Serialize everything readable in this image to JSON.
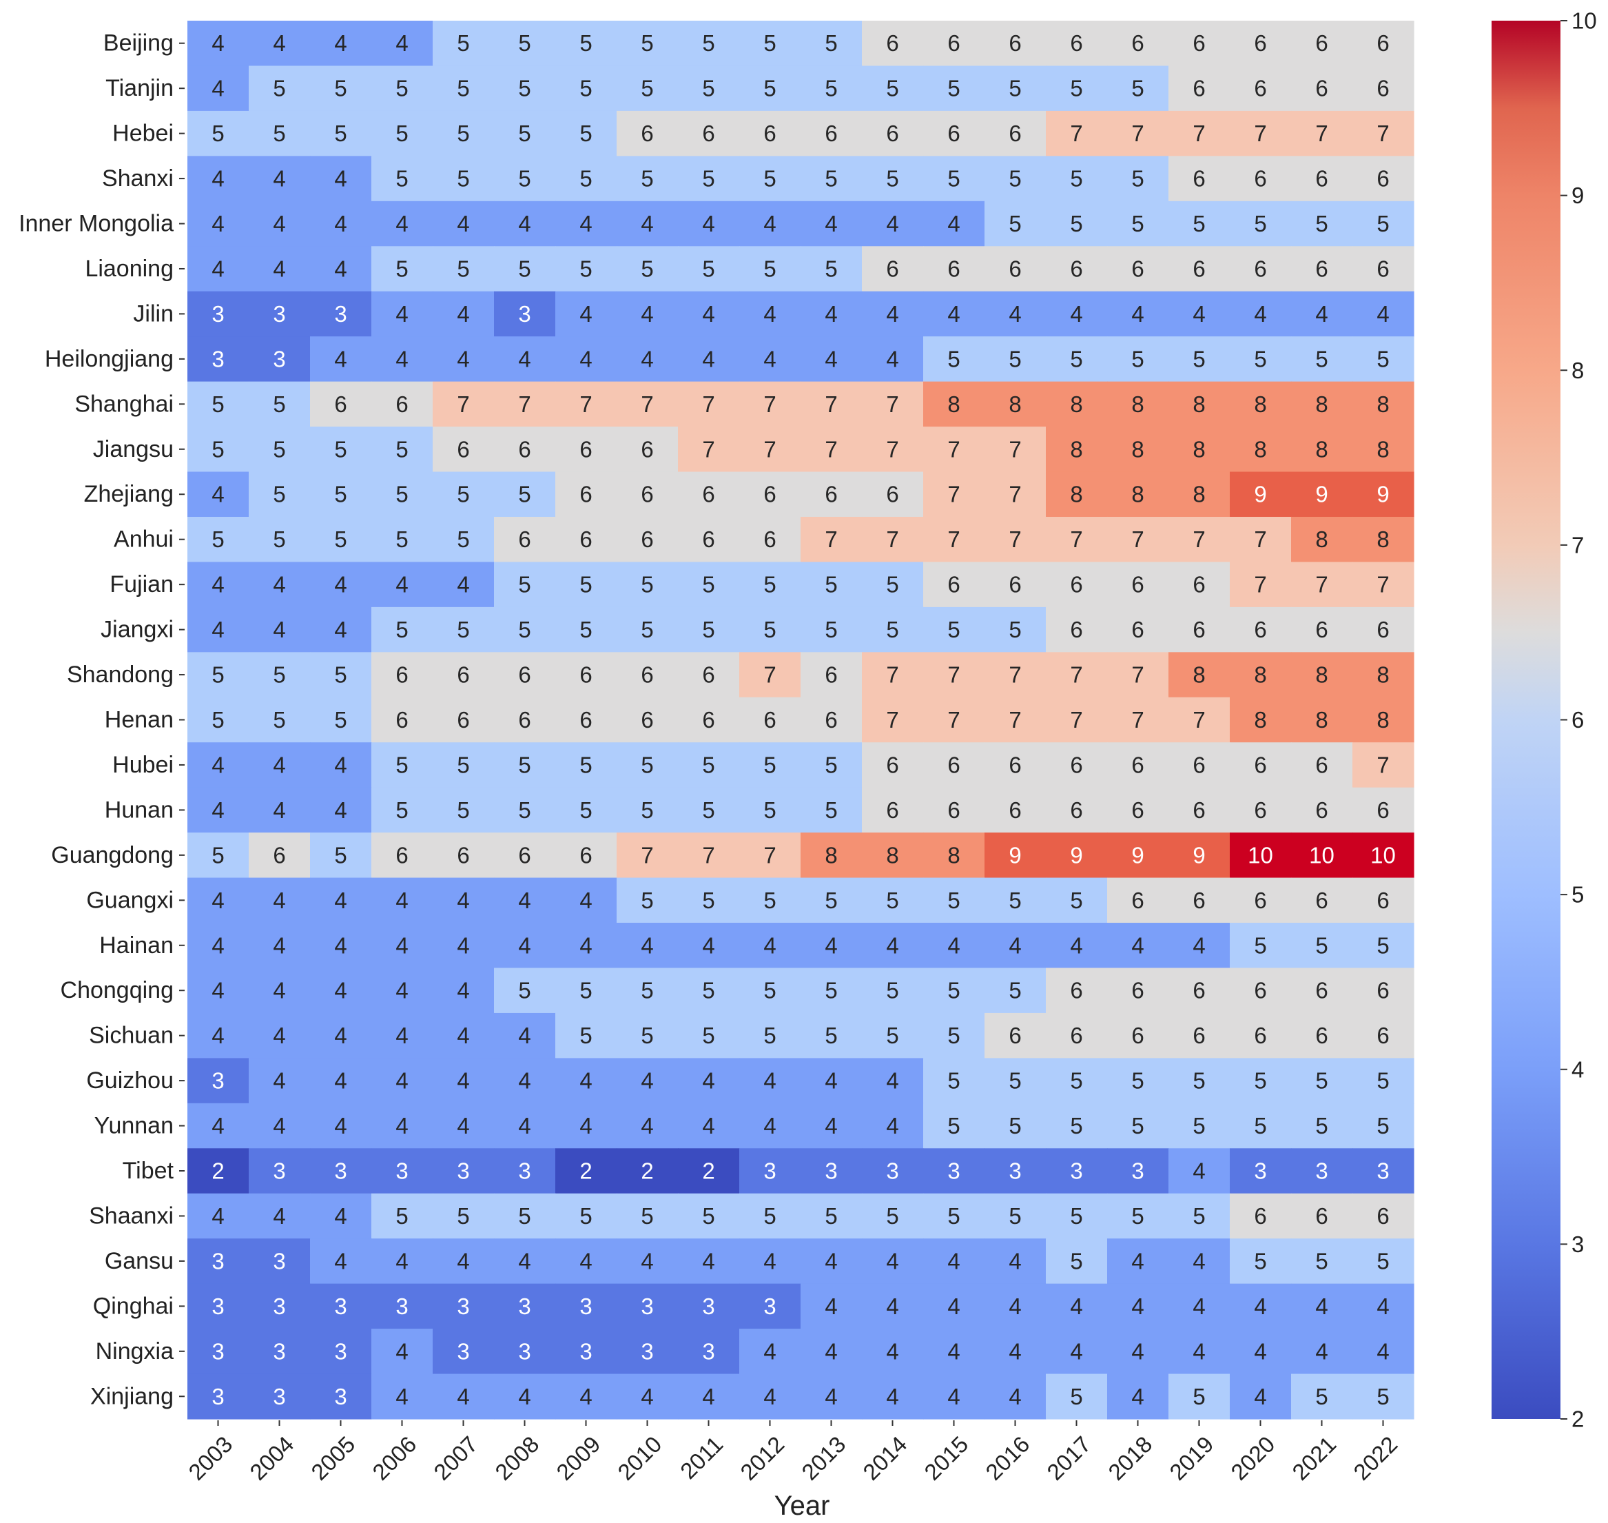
{
  "chart_data": {
    "type": "heatmap",
    "title": "",
    "xlabel": "Year",
    "ylabel": "",
    "x": [
      "2003",
      "2004",
      "2005",
      "2006",
      "2007",
      "2008",
      "2009",
      "2010",
      "2011",
      "2012",
      "2013",
      "2014",
      "2015",
      "2016",
      "2017",
      "2018",
      "2019",
      "2020",
      "2021",
      "2022"
    ],
    "y": [
      "Beijing",
      "Tianjin",
      "Hebei",
      "Shanxi",
      "Inner Mongolia",
      "Liaoning",
      "Jilin",
      "Heilongjiang",
      "Shanghai",
      "Jiangsu",
      "Zhejiang",
      "Anhui",
      "Fujian",
      "Jiangxi",
      "Shandong",
      "Henan",
      "Hubei",
      "Hunan",
      "Guangdong",
      "Guangxi",
      "Hainan",
      "Chongqing",
      "Sichuan",
      "Guizhou",
      "Yunnan",
      "Tibet",
      "Shaanxi",
      "Gansu",
      "Qinghai",
      "Ningxia",
      "Xinjiang"
    ],
    "values": [
      [
        4,
        4,
        4,
        4,
        5,
        5,
        5,
        5,
        5,
        5,
        5,
        6,
        6,
        6,
        6,
        6,
        6,
        6,
        6,
        6
      ],
      [
        4,
        5,
        5,
        5,
        5,
        5,
        5,
        5,
        5,
        5,
        5,
        5,
        5,
        5,
        5,
        5,
        6,
        6,
        6,
        6
      ],
      [
        5,
        5,
        5,
        5,
        5,
        5,
        5,
        6,
        6,
        6,
        6,
        6,
        6,
        6,
        7,
        7,
        7,
        7,
        7,
        7
      ],
      [
        4,
        4,
        4,
        5,
        5,
        5,
        5,
        5,
        5,
        5,
        5,
        5,
        5,
        5,
        5,
        5,
        6,
        6,
        6,
        6
      ],
      [
        4,
        4,
        4,
        4,
        4,
        4,
        4,
        4,
        4,
        4,
        4,
        4,
        4,
        5,
        5,
        5,
        5,
        5,
        5,
        5
      ],
      [
        4,
        4,
        4,
        5,
        5,
        5,
        5,
        5,
        5,
        5,
        5,
        6,
        6,
        6,
        6,
        6,
        6,
        6,
        6,
        6
      ],
      [
        3,
        3,
        3,
        4,
        4,
        3,
        4,
        4,
        4,
        4,
        4,
        4,
        4,
        4,
        4,
        4,
        4,
        4,
        4,
        4
      ],
      [
        3,
        3,
        4,
        4,
        4,
        4,
        4,
        4,
        4,
        4,
        4,
        4,
        5,
        5,
        5,
        5,
        5,
        5,
        5,
        5
      ],
      [
        5,
        5,
        6,
        6,
        7,
        7,
        7,
        7,
        7,
        7,
        7,
        7,
        8,
        8,
        8,
        8,
        8,
        8,
        8,
        8
      ],
      [
        5,
        5,
        5,
        5,
        6,
        6,
        6,
        6,
        7,
        7,
        7,
        7,
        7,
        7,
        8,
        8,
        8,
        8,
        8,
        8
      ],
      [
        4,
        5,
        5,
        5,
        5,
        5,
        6,
        6,
        6,
        6,
        6,
        6,
        7,
        7,
        8,
        8,
        8,
        9,
        9,
        9
      ],
      [
        5,
        5,
        5,
        5,
        5,
        6,
        6,
        6,
        6,
        6,
        7,
        7,
        7,
        7,
        7,
        7,
        7,
        7,
        8,
        8
      ],
      [
        4,
        4,
        4,
        4,
        4,
        5,
        5,
        5,
        5,
        5,
        5,
        5,
        6,
        6,
        6,
        6,
        6,
        7,
        7,
        7
      ],
      [
        4,
        4,
        4,
        5,
        5,
        5,
        5,
        5,
        5,
        5,
        5,
        5,
        5,
        5,
        6,
        6,
        6,
        6,
        6,
        6
      ],
      [
        5,
        5,
        5,
        6,
        6,
        6,
        6,
        6,
        6,
        7,
        6,
        7,
        7,
        7,
        7,
        7,
        8,
        8,
        8,
        8
      ],
      [
        5,
        5,
        5,
        6,
        6,
        6,
        6,
        6,
        6,
        6,
        6,
        7,
        7,
        7,
        7,
        7,
        7,
        8,
        8,
        8
      ],
      [
        4,
        4,
        4,
        5,
        5,
        5,
        5,
        5,
        5,
        5,
        5,
        6,
        6,
        6,
        6,
        6,
        6,
        6,
        6,
        7
      ],
      [
        4,
        4,
        4,
        5,
        5,
        5,
        5,
        5,
        5,
        5,
        5,
        6,
        6,
        6,
        6,
        6,
        6,
        6,
        6,
        6
      ],
      [
        5,
        6,
        5,
        6,
        6,
        6,
        6,
        7,
        7,
        7,
        8,
        8,
        8,
        9,
        9,
        9,
        9,
        10,
        10,
        10
      ],
      [
        4,
        4,
        4,
        4,
        4,
        4,
        4,
        5,
        5,
        5,
        5,
        5,
        5,
        5,
        5,
        6,
        6,
        6,
        6,
        6
      ],
      [
        4,
        4,
        4,
        4,
        4,
        4,
        4,
        4,
        4,
        4,
        4,
        4,
        4,
        4,
        4,
        4,
        4,
        5,
        5,
        5
      ],
      [
        4,
        4,
        4,
        4,
        4,
        5,
        5,
        5,
        5,
        5,
        5,
        5,
        5,
        5,
        6,
        6,
        6,
        6,
        6,
        6
      ],
      [
        4,
        4,
        4,
        4,
        4,
        4,
        5,
        5,
        5,
        5,
        5,
        5,
        5,
        6,
        6,
        6,
        6,
        6,
        6,
        6
      ],
      [
        3,
        4,
        4,
        4,
        4,
        4,
        4,
        4,
        4,
        4,
        4,
        4,
        5,
        5,
        5,
        5,
        5,
        5,
        5,
        5
      ],
      [
        4,
        4,
        4,
        4,
        4,
        4,
        4,
        4,
        4,
        4,
        4,
        4,
        5,
        5,
        5,
        5,
        5,
        5,
        5,
        5
      ],
      [
        2,
        3,
        3,
        3,
        3,
        3,
        2,
        2,
        2,
        3,
        3,
        3,
        3,
        3,
        3,
        3,
        4,
        3,
        3,
        3
      ],
      [
        4,
        4,
        4,
        5,
        5,
        5,
        5,
        5,
        5,
        5,
        5,
        5,
        5,
        5,
        5,
        5,
        5,
        6,
        6,
        6
      ],
      [
        3,
        3,
        4,
        4,
        4,
        4,
        4,
        4,
        4,
        4,
        4,
        4,
        4,
        4,
        5,
        4,
        4,
        5,
        5,
        5
      ],
      [
        3,
        3,
        3,
        3,
        3,
        3,
        3,
        3,
        3,
        3,
        4,
        4,
        4,
        4,
        4,
        4,
        4,
        4,
        4,
        4
      ],
      [
        3,
        3,
        3,
        4,
        3,
        3,
        3,
        3,
        3,
        4,
        4,
        4,
        4,
        4,
        4,
        4,
        4,
        4,
        4,
        4
      ],
      [
        3,
        3,
        3,
        4,
        4,
        4,
        4,
        4,
        4,
        4,
        4,
        4,
        4,
        4,
        5,
        4,
        5,
        4,
        5,
        5
      ]
    ],
    "colorbar": {
      "colormap": "coolwarm",
      "vmin": 2,
      "vmax": 10,
      "ticks": [
        2,
        3,
        4,
        5,
        6,
        7,
        8,
        9,
        10
      ]
    },
    "annotations": "cell values shown in each cell"
  }
}
